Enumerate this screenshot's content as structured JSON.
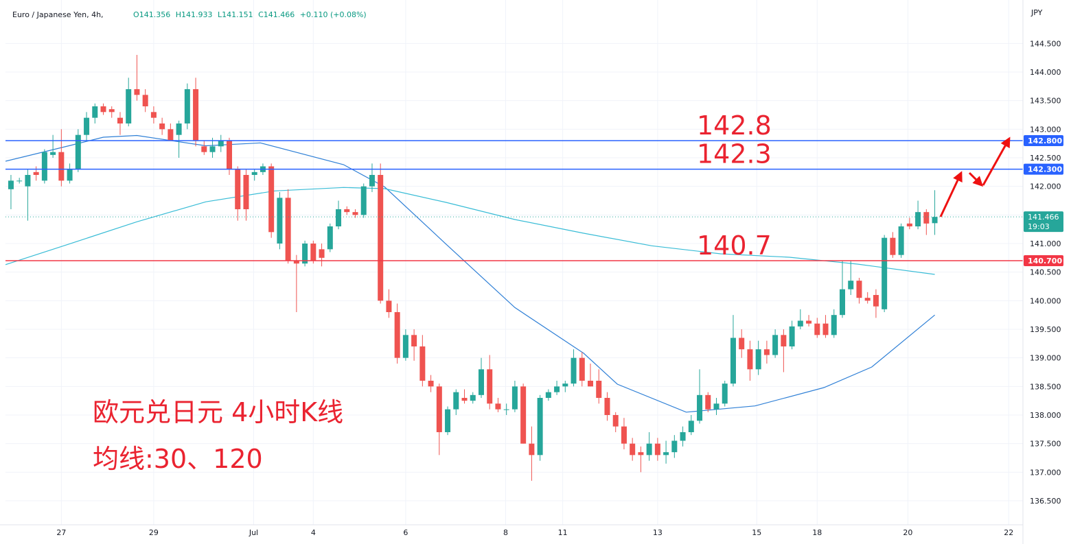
{
  "chart_data": {
    "type": "candlestick",
    "title": "Euro / Japanese Yen, 4h,",
    "legend": [
      "O141.356",
      "H141.933",
      "L141.151",
      "C141.466",
      "+0.110 (+0.08%)"
    ],
    "currency": "JPY",
    "up_color": "#26a69a",
    "down_color": "#ef5350",
    "xlim": [
      -0.65,
      120.5
    ],
    "ylim": [
      136.08,
      145.26
    ],
    "grid": true,
    "yticks": [
      {
        "value": 136.5,
        "label": "136.500"
      },
      {
        "value": 137,
        "label": "137.000"
      },
      {
        "value": 137.5,
        "label": "137.500"
      },
      {
        "value": 138,
        "label": "138.000"
      },
      {
        "value": 138.5,
        "label": "138.500"
      },
      {
        "value": 139,
        "label": "139.000"
      },
      {
        "value": 139.5,
        "label": "139.500"
      },
      {
        "value": 140,
        "label": "140.000"
      },
      {
        "value": 140.5,
        "label": "140.500"
      },
      {
        "value": 141,
        "label": "141.000"
      },
      {
        "value": 141.5,
        "label": "141.500"
      },
      {
        "value": 142,
        "label": "142.000"
      },
      {
        "value": 142.5,
        "label": "142.500"
      },
      {
        "value": 143,
        "label": "143.000"
      },
      {
        "value": 143.5,
        "label": "143.500"
      },
      {
        "value": 144,
        "label": "144.000"
      },
      {
        "value": 144.5,
        "label": "144.500"
      }
    ],
    "xticks": [
      {
        "value": 6,
        "label": "27"
      },
      {
        "value": 17,
        "label": "29"
      },
      {
        "value": 28.9,
        "label": "Jul"
      },
      {
        "value": 36,
        "label": "4"
      },
      {
        "value": 47,
        "label": "6"
      },
      {
        "value": 58.9,
        "label": "8"
      },
      {
        "value": 65.7,
        "label": "11"
      },
      {
        "value": 77,
        "label": "13"
      },
      {
        "value": 88.8,
        "label": "15"
      },
      {
        "value": 96,
        "label": "18"
      },
      {
        "value": 106.8,
        "label": "20"
      },
      {
        "value": 118.8,
        "label": "22"
      }
    ],
    "ohlc": [
      [
        141.95,
        142.2,
        141.6,
        142.1
      ],
      [
        142.1,
        142.15,
        142.05,
        142.1
      ],
      [
        142.0,
        142.3,
        141.4,
        142.2
      ],
      [
        142.25,
        142.35,
        142.1,
        142.2
      ],
      [
        142.1,
        142.65,
        142.05,
        142.6
      ],
      [
        142.55,
        142.9,
        142.5,
        142.6
      ],
      [
        142.6,
        143.0,
        142.0,
        142.1
      ],
      [
        142.1,
        142.4,
        142.05,
        142.3
      ],
      [
        142.3,
        143.0,
        142.25,
        142.9
      ],
      [
        142.9,
        143.3,
        142.8,
        143.2
      ],
      [
        143.2,
        143.45,
        143.1,
        143.4
      ],
      [
        143.4,
        143.45,
        143.25,
        143.3
      ],
      [
        143.35,
        143.4,
        143.2,
        143.3
      ],
      [
        143.2,
        143.3,
        142.9,
        143.1
      ],
      [
        143.1,
        143.9,
        143.05,
        143.7
      ],
      [
        143.7,
        144.3,
        143.5,
        143.6
      ],
      [
        143.6,
        143.7,
        143.3,
        143.4
      ],
      [
        143.3,
        143.4,
        143.1,
        143.2
      ],
      [
        143.1,
        143.2,
        142.9,
        143.0
      ],
      [
        143.0,
        143.1,
        142.8,
        142.8
      ],
      [
        142.9,
        143.15,
        142.5,
        143.1
      ],
      [
        143.1,
        143.8,
        143.0,
        143.7
      ],
      [
        143.7,
        143.9,
        142.7,
        142.8
      ],
      [
        142.7,
        142.8,
        142.55,
        142.6
      ],
      [
        142.6,
        142.85,
        142.5,
        142.7
      ],
      [
        142.7,
        142.9,
        142.6,
        142.8
      ],
      [
        142.8,
        142.85,
        142.2,
        142.3
      ],
      [
        142.3,
        142.35,
        141.4,
        141.6
      ],
      [
        142.2,
        142.3,
        141.4,
        141.6
      ],
      [
        142.2,
        142.3,
        142.1,
        142.25
      ],
      [
        142.25,
        142.4,
        142.2,
        142.35
      ],
      [
        142.35,
        142.4,
        141.1,
        141.2
      ],
      [
        141.0,
        141.9,
        140.9,
        141.8
      ],
      [
        141.8,
        141.95,
        140.65,
        140.7
      ],
      [
        140.7,
        140.8,
        139.8,
        140.65
      ],
      [
        140.65,
        141.05,
        140.6,
        141.0
      ],
      [
        141.0,
        141.05,
        140.65,
        140.7
      ],
      [
        140.9,
        141.0,
        140.6,
        140.75
      ],
      [
        140.9,
        141.35,
        140.85,
        141.3
      ],
      [
        141.3,
        141.75,
        141.25,
        141.6
      ],
      [
        141.6,
        141.65,
        141.5,
        141.55
      ],
      [
        141.55,
        141.6,
        141.45,
        141.5
      ],
      [
        141.5,
        142.05,
        141.45,
        142.0
      ],
      [
        142.0,
        142.4,
        141.9,
        142.2
      ],
      [
        142.2,
        142.4,
        139.95,
        140.0
      ],
      [
        140.0,
        140.2,
        139.7,
        139.8
      ],
      [
        139.8,
        139.95,
        138.9,
        139.0
      ],
      [
        139.0,
        139.5,
        138.95,
        139.4
      ],
      [
        139.4,
        139.5,
        138.95,
        139.2
      ],
      [
        139.2,
        139.4,
        138.5,
        138.6
      ],
      [
        138.6,
        138.7,
        138.4,
        138.5
      ],
      [
        138.5,
        138.55,
        137.3,
        137.7
      ],
      [
        137.7,
        138.15,
        137.65,
        138.1
      ],
      [
        138.1,
        138.45,
        138.0,
        138.4
      ],
      [
        138.3,
        138.45,
        138.2,
        138.25
      ],
      [
        138.25,
        138.4,
        138.2,
        138.35
      ],
      [
        138.35,
        139.0,
        138.3,
        138.8
      ],
      [
        138.8,
        139.05,
        138.1,
        138.2
      ],
      [
        138.2,
        138.3,
        138.05,
        138.1
      ],
      [
        138.1,
        138.2,
        138.0,
        138.1
      ],
      [
        138.1,
        138.6,
        138.05,
        138.5
      ],
      [
        138.5,
        138.55,
        137.5,
        137.5
      ],
      [
        137.5,
        137.8,
        136.85,
        137.3
      ],
      [
        137.3,
        138.35,
        137.2,
        138.3
      ],
      [
        138.3,
        138.45,
        138.25,
        138.4
      ],
      [
        138.4,
        138.6,
        138.35,
        138.5
      ],
      [
        138.5,
        138.6,
        138.4,
        138.55
      ],
      [
        138.55,
        139.15,
        138.5,
        139.0
      ],
      [
        139.0,
        139.1,
        138.5,
        138.6
      ],
      [
        138.6,
        138.9,
        138.5,
        138.5
      ],
      [
        138.6,
        138.8,
        138.2,
        138.3
      ],
      [
        138.3,
        138.4,
        137.9,
        138.0
      ],
      [
        138.0,
        138.05,
        137.7,
        137.8
      ],
      [
        137.8,
        137.95,
        137.4,
        137.5
      ],
      [
        137.5,
        137.6,
        137.2,
        137.3
      ],
      [
        137.35,
        137.45,
        137.0,
        137.3
      ],
      [
        137.3,
        137.7,
        137.2,
        137.5
      ],
      [
        137.5,
        137.6,
        137.2,
        137.3
      ],
      [
        137.3,
        137.55,
        137.15,
        137.35
      ],
      [
        137.35,
        137.65,
        137.25,
        137.55
      ],
      [
        137.55,
        137.8,
        137.45,
        137.7
      ],
      [
        137.7,
        138.0,
        137.65,
        137.9
      ],
      [
        137.9,
        138.8,
        137.85,
        138.35
      ],
      [
        138.35,
        138.4,
        138.05,
        138.1
      ],
      [
        138.1,
        138.3,
        138.0,
        138.2
      ],
      [
        138.2,
        138.6,
        138.15,
        138.55
      ],
      [
        138.55,
        139.75,
        138.5,
        139.35
      ],
      [
        139.35,
        139.5,
        139.0,
        139.15
      ],
      [
        139.15,
        139.3,
        138.6,
        138.8
      ],
      [
        138.8,
        139.3,
        138.7,
        139.15
      ],
      [
        139.15,
        139.3,
        138.9,
        139.05
      ],
      [
        139.05,
        139.5,
        139.0,
        139.4
      ],
      [
        139.4,
        139.5,
        138.75,
        139.2
      ],
      [
        139.2,
        139.65,
        139.15,
        139.55
      ],
      [
        139.55,
        139.85,
        139.5,
        139.65
      ],
      [
        139.65,
        139.75,
        139.55,
        139.6
      ],
      [
        139.6,
        139.7,
        139.35,
        139.4
      ],
      [
        139.6,
        139.75,
        139.35,
        139.4
      ],
      [
        139.4,
        139.85,
        139.35,
        139.75
      ],
      [
        139.75,
        140.7,
        139.7,
        140.2
      ],
      [
        140.2,
        140.7,
        140.1,
        140.35
      ],
      [
        140.35,
        140.4,
        139.95,
        140.05
      ],
      [
        140.05,
        140.15,
        139.95,
        140.0
      ],
      [
        140.1,
        140.2,
        139.7,
        139.9
      ],
      [
        139.85,
        141.15,
        139.8,
        141.1
      ],
      [
        141.1,
        141.2,
        140.75,
        140.8
      ],
      [
        140.8,
        141.35,
        140.75,
        141.3
      ],
      [
        141.35,
        141.45,
        141.25,
        141.3
      ],
      [
        141.3,
        141.75,
        141.25,
        141.55
      ],
      [
        141.55,
        141.6,
        141.15,
        141.35
      ],
      [
        141.356,
        141.933,
        141.151,
        141.466
      ]
    ],
    "moving_averages": [
      {
        "color": "#2e7fd6",
        "x": [
          -0.65,
          6.9,
          11,
          15,
          23.2,
          29.7,
          39.6,
          44.5,
          51.8,
          60,
          68.2,
          72.2,
          80.4,
          88.6,
          96.8,
          102.5,
          110
        ],
        "values": [
          142.44,
          142.71,
          142.86,
          142.89,
          142.71,
          142.76,
          142.38,
          141.99,
          140.99,
          139.88,
          139.08,
          138.54,
          138.05,
          138.16,
          138.48,
          138.84,
          139.75
        ]
      },
      {
        "color": "#38bcd6",
        "x": [
          -0.65,
          6.9,
          15,
          23.2,
          31.4,
          39.6,
          44.5,
          51.8,
          60,
          68.2,
          76.3,
          84.5,
          92.7,
          100.8,
          110
        ],
        "values": [
          140.63,
          140.99,
          141.38,
          141.73,
          141.92,
          141.98,
          141.96,
          141.72,
          141.42,
          141.18,
          140.96,
          140.82,
          140.76,
          140.64,
          140.46
        ]
      }
    ],
    "levels": [
      {
        "value": 142.8,
        "label": "142.800",
        "annotation": "142.8",
        "color": "#2962ff"
      },
      {
        "value": 142.3,
        "label": "142.300",
        "annotation": "142.3",
        "color": "#2962ff"
      },
      {
        "value": 140.7,
        "label": "140.700",
        "annotation": "140.7",
        "color": "#f23645"
      }
    ],
    "last_price": {
      "value": 141.466,
      "label": "141.466",
      "countdown": "19:03",
      "color": "#26a69a"
    },
    "annotations": [
      "欧元兑日元 4小时K线",
      "均线:30、120"
    ]
  }
}
